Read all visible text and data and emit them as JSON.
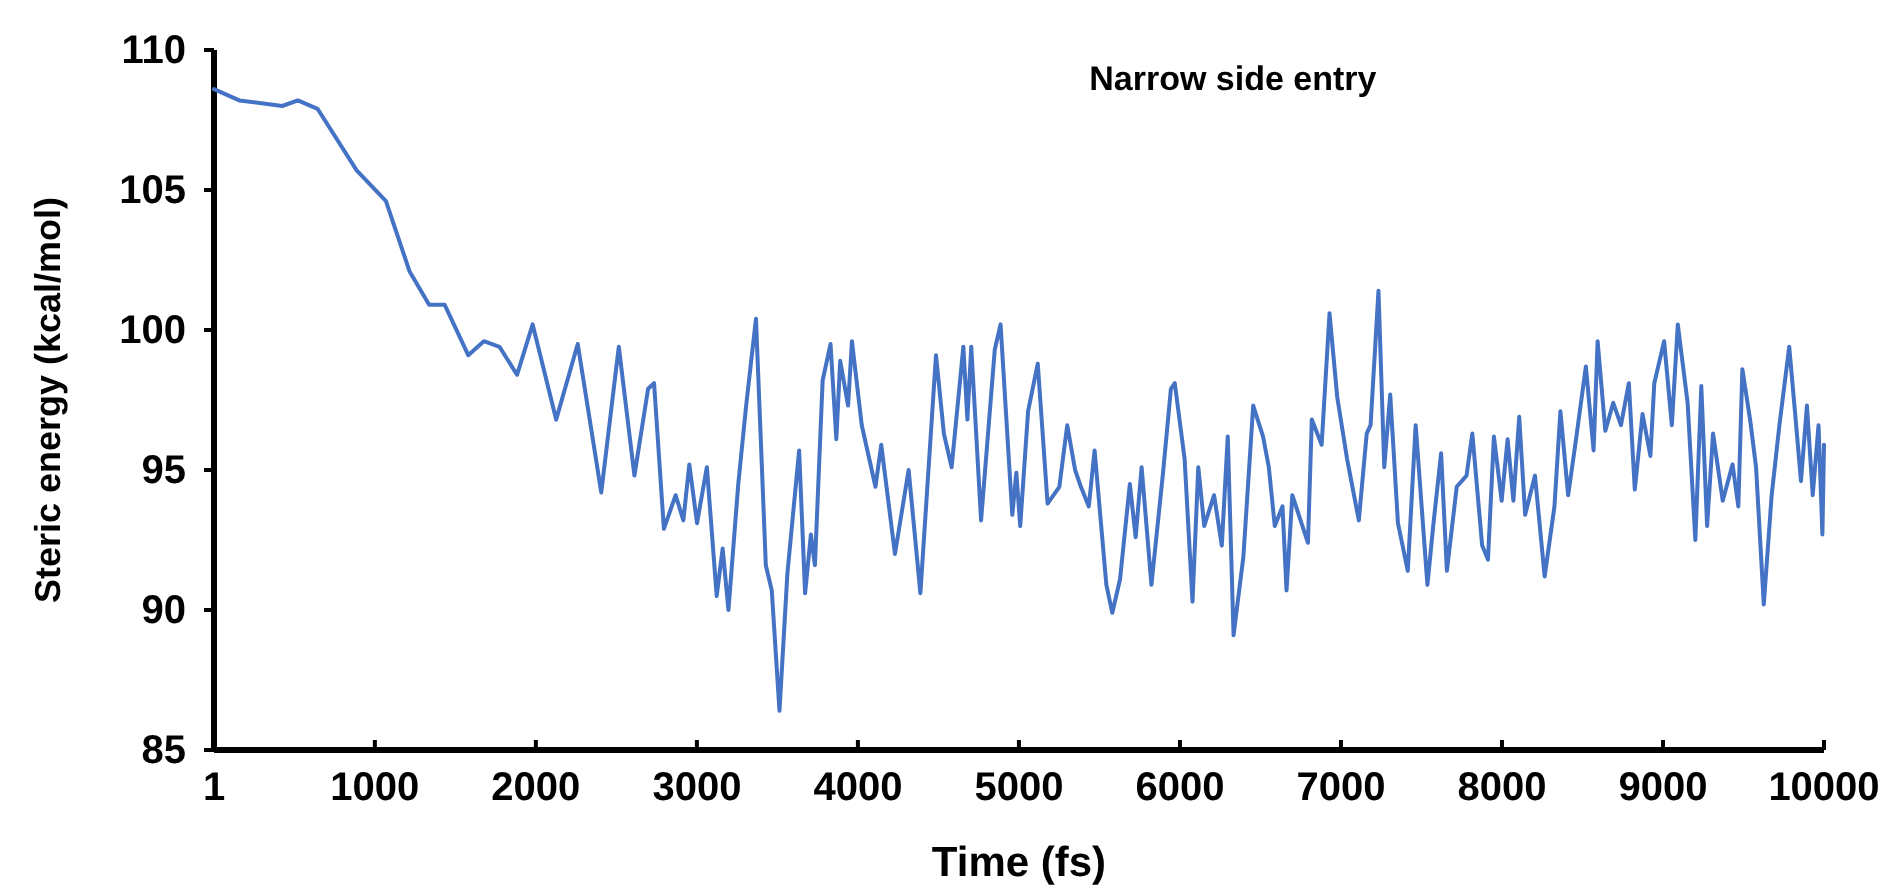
{
  "chart_data": {
    "type": "line",
    "title": "Narrow side entry",
    "xlabel": "Time (fs)",
    "ylabel": "Steric energy (kcal/mol)",
    "xlim": [
      1,
      10000
    ],
    "ylim": [
      85,
      110
    ],
    "xticks": [
      1,
      1000,
      2000,
      3000,
      4000,
      5000,
      6000,
      7000,
      8000,
      9000,
      10000
    ],
    "yticks": [
      85,
      90,
      95,
      100,
      105,
      110
    ],
    "grid": false,
    "marker": "none",
    "line_style": "solid",
    "series": [
      {
        "color": "#4472c4",
        "x": [
          1,
          158,
          425,
          522,
          644,
          887,
          1069,
          1215,
          1337,
          1434,
          1580,
          1677,
          1774,
          1883,
          1980,
          2126,
          2260,
          2406,
          2515,
          2612,
          2697,
          2734,
          2795,
          2868,
          2916,
          2953,
          3001,
          3062,
          3123,
          3160,
          3196,
          3257,
          3306,
          3367,
          3428,
          3465,
          3513,
          3562,
          3635,
          3672,
          3708,
          3733,
          3781,
          3830,
          3866,
          3890,
          3939,
          3963,
          4024,
          4109,
          4145,
          4230,
          4315,
          4388,
          4485,
          4534,
          4582,
          4655,
          4680,
          4704,
          4765,
          4850,
          4886,
          4935,
          4959,
          4984,
          5008,
          5057,
          5117,
          5178,
          5251,
          5300,
          5349,
          5385,
          5434,
          5470,
          5543,
          5580,
          5628,
          5689,
          5725,
          5762,
          5823,
          5895,
          5944,
          5968,
          6029,
          6078,
          6114,
          6151,
          6212,
          6260,
          6297,
          6333,
          6394,
          6455,
          6516,
          6552,
          6589,
          6637,
          6662,
          6698,
          6795,
          6819,
          6880,
          6929,
          6977,
          7038,
          7111,
          7160,
          7184,
          7233,
          7269,
          7306,
          7354,
          7415,
          7464,
          7537,
          7573,
          7622,
          7658,
          7719,
          7780,
          7816,
          7877,
          7913,
          7950,
          7998,
          8035,
          8071,
          8107,
          8144,
          8205,
          8265,
          8326,
          8363,
          8411,
          8460,
          8521,
          8569,
          8594,
          8642,
          8691,
          8739,
          8788,
          8825,
          8873,
          8922,
          8946,
          9007,
          9055,
          9092,
          9153,
          9201,
          9238,
          9274,
          9311,
          9371,
          9432,
          9468,
          9493,
          9541,
          9578,
          9626,
          9675,
          9723,
          9784,
          9821,
          9857,
          9894,
          9930,
          9966,
          9990,
          10000
        ],
        "values": [
          108.6,
          108.2,
          108.0,
          108.2,
          107.9,
          105.7,
          104.6,
          102.1,
          100.9,
          100.9,
          99.1,
          99.6,
          99.4,
          98.4,
          100.2,
          96.8,
          99.5,
          94.2,
          99.4,
          94.8,
          97.9,
          98.1,
          92.9,
          94.1,
          93.2,
          95.2,
          93.1,
          95.1,
          90.5,
          92.2,
          90.0,
          94.5,
          97.3,
          100.4,
          91.6,
          90.7,
          86.4,
          91.3,
          95.7,
          90.6,
          92.7,
          91.6,
          98.2,
          99.5,
          96.1,
          98.9,
          97.3,
          99.6,
          96.6,
          94.4,
          95.9,
          92.0,
          95.0,
          90.6,
          99.1,
          96.3,
          95.1,
          99.4,
          96.8,
          99.4,
          93.2,
          99.3,
          100.2,
          95.6,
          93.4,
          94.9,
          93.0,
          97.1,
          98.8,
          93.8,
          94.4,
          96.6,
          95.0,
          94.4,
          93.7,
          95.7,
          90.9,
          89.9,
          91.1,
          94.5,
          92.6,
          95.1,
          90.9,
          94.9,
          97.9,
          98.1,
          95.4,
          90.3,
          95.1,
          93.0,
          94.1,
          92.3,
          96.2,
          89.1,
          91.9,
          97.3,
          96.2,
          95.1,
          93.0,
          93.7,
          90.7,
          94.1,
          92.4,
          96.8,
          95.9,
          100.6,
          97.6,
          95.4,
          93.2,
          96.3,
          96.6,
          101.4,
          95.1,
          97.7,
          93.1,
          91.4,
          96.6,
          90.9,
          93.0,
          95.6,
          91.4,
          94.4,
          94.8,
          96.3,
          92.3,
          91.8,
          96.2,
          93.9,
          96.1,
          93.9,
          96.9,
          93.4,
          94.8,
          91.2,
          93.7,
          97.1,
          94.1,
          96.1,
          98.7,
          95.7,
          99.6,
          96.4,
          97.4,
          96.6,
          98.1,
          94.3,
          97.0,
          95.5,
          98.1,
          99.6,
          96.6,
          100.2,
          97.4,
          92.5,
          98.0,
          93.0,
          96.3,
          93.9,
          95.2,
          93.7,
          98.6,
          96.8,
          95.1,
          90.2,
          94.1,
          96.6,
          99.4,
          97.0,
          94.6,
          97.3,
          94.1,
          96.6,
          92.7,
          95.9
        ]
      }
    ]
  }
}
